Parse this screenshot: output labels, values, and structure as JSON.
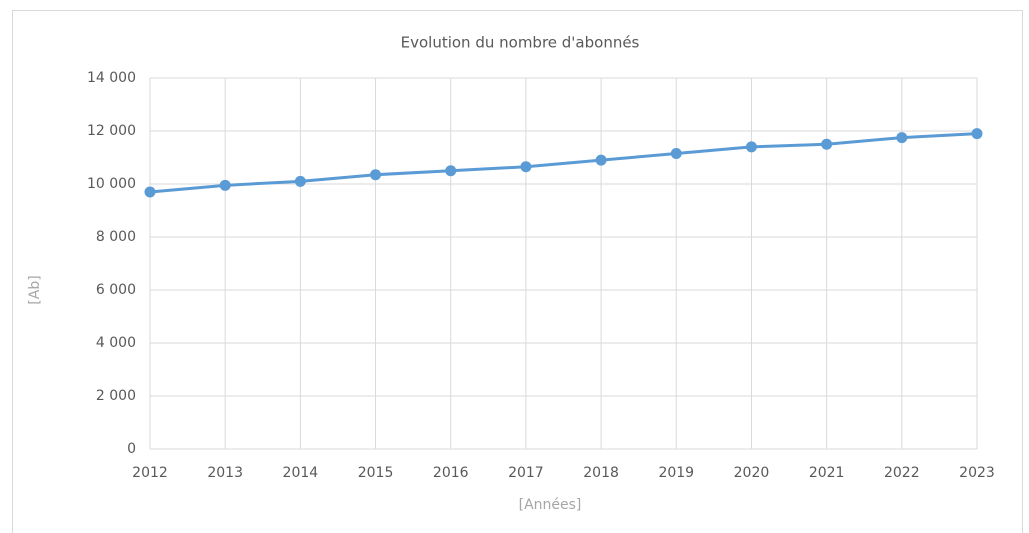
{
  "chart_data": {
    "type": "line",
    "title": "Evolution du nombre d'abonnés",
    "xlabel": "[Années]",
    "ylabel": "[Ab]",
    "x": [
      2012,
      2013,
      2014,
      2015,
      2016,
      2017,
      2018,
      2019,
      2020,
      2021,
      2022,
      2023
    ],
    "series": [
      {
        "color": "#5b9bd5",
        "values": [
          9700,
          9950,
          10100,
          10350,
          10500,
          10650,
          10900,
          11150,
          11400,
          11500,
          11750,
          11900
        ]
      }
    ],
    "xlim": [
      2012,
      2023
    ],
    "xticks": [
      2012,
      2013,
      2014,
      2015,
      2016,
      2017,
      2018,
      2019,
      2020,
      2021,
      2022,
      2023
    ],
    "ylim": [
      0,
      14000
    ],
    "yticks": [
      0,
      {
        "value": 2000,
        "label": "2 000"
      },
      {
        "value": 4000,
        "label": "4 000"
      },
      {
        "value": 6000,
        "label": "6 000"
      },
      {
        "value": 8000,
        "label": "8 000"
      },
      {
        "value": 10000,
        "label": "10 000"
      },
      {
        "value": 12000,
        "label": "12 000"
      },
      {
        "value": 14000,
        "label": "14 000"
      }
    ],
    "grid": true
  }
}
